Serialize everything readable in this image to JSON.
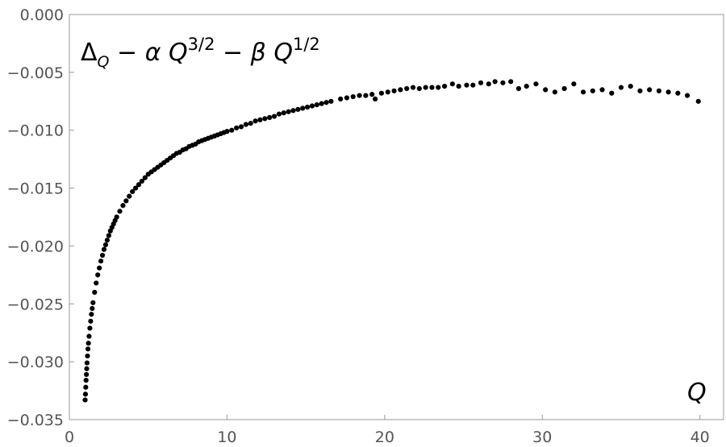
{
  "chart_data": {
    "type": "scatter",
    "title": "",
    "annotation": {
      "delta": "Δ",
      "delta_sub": "Q",
      "minus1": " − ",
      "alpha": "α",
      "q1": " Q",
      "exp1": "3/2",
      "minus2": " − ",
      "beta": "β",
      "q2": " Q",
      "exp2": "1/2"
    },
    "xlabel": "Q",
    "ylabel": "",
    "xlim": [
      0,
      41.5
    ],
    "ylim": [
      -0.035,
      0.0
    ],
    "xticks": [
      0,
      10,
      20,
      30,
      40
    ],
    "xtick_labels": [
      "0",
      "10",
      "20",
      "30",
      "40"
    ],
    "yticks": [
      0.0,
      -0.005,
      -0.01,
      -0.015,
      -0.02,
      -0.025,
      -0.03,
      -0.035
    ],
    "ytick_labels": [
      "0.000",
      "−0.005",
      "−0.010",
      "−0.015",
      "−0.020",
      "−0.025",
      "−0.030",
      "−0.035"
    ],
    "grid": false,
    "frame": true,
    "marker_color": "#000000",
    "axis_color": "#999999",
    "series": [
      {
        "x": [
          1.0,
          1.02,
          1.04,
          1.06,
          1.08,
          1.1,
          1.12,
          1.15,
          1.18,
          1.21,
          1.25,
          1.3,
          1.35,
          1.4,
          1.45,
          1.5,
          1.6,
          1.7,
          1.8,
          1.9,
          2.0,
          2.1,
          2.2,
          2.3,
          2.4,
          2.5,
          2.6,
          2.7,
          2.8,
          2.9,
          3.0,
          3.2,
          3.4,
          3.6,
          3.8,
          4.0,
          4.2,
          4.4,
          4.6,
          4.8,
          5.0,
          5.2,
          5.4,
          5.6,
          5.8,
          6.0,
          6.2,
          6.4,
          6.6,
          6.8,
          7.0,
          7.2,
          7.4,
          7.6,
          7.8,
          8.0,
          8.2,
          8.4,
          8.6,
          8.8,
          9.0,
          9.2,
          9.4,
          9.6,
          9.8,
          10.0,
          10.3,
          10.6,
          10.9,
          11.2,
          11.5,
          11.8,
          12.1,
          12.4,
          12.7,
          13.0,
          13.3,
          13.6,
          13.9,
          14.2,
          14.5,
          14.8,
          15.1,
          15.4,
          15.7,
          16.0,
          16.3,
          16.6,
          17.2,
          17.6,
          18.0,
          18.4,
          18.8,
          19.2,
          19.4,
          19.8,
          20.2,
          20.6,
          21.0,
          21.4,
          21.8,
          22.2,
          22.6,
          23.0,
          23.4,
          23.8,
          24.3,
          24.7,
          25.2,
          25.6,
          26.1,
          26.6,
          27.0,
          27.5,
          28.0,
          28.5,
          29.0,
          29.6,
          30.2,
          30.8,
          31.4,
          32.0,
          32.6,
          33.2,
          33.8,
          34.4,
          35.0,
          35.6,
          36.2,
          36.8,
          37.4,
          38.0,
          38.6,
          39.2,
          39.9
        ],
        "y": [
          -0.0333,
          -0.0328,
          -0.0322,
          -0.0316,
          -0.0311,
          -0.0306,
          -0.0301,
          -0.0295,
          -0.0289,
          -0.0284,
          -0.0278,
          -0.0271,
          -0.0265,
          -0.0259,
          -0.0254,
          -0.0249,
          -0.024,
          -0.0232,
          -0.0225,
          -0.0219,
          -0.0213,
          -0.0208,
          -0.0203,
          -0.0199,
          -0.0195,
          -0.0191,
          -0.0187,
          -0.0184,
          -0.0181,
          -0.0178,
          -0.0175,
          -0.017,
          -0.0165,
          -0.0161,
          -0.0157,
          -0.0153,
          -0.015,
          -0.0147,
          -0.0144,
          -0.0141,
          -0.0138,
          -0.0136,
          -0.0134,
          -0.0132,
          -0.013,
          -0.0128,
          -0.0126,
          -0.0124,
          -0.0122,
          -0.012,
          -0.0119,
          -0.0117,
          -0.0116,
          -0.0114,
          -0.0113,
          -0.0112,
          -0.011,
          -0.0109,
          -0.0108,
          -0.0107,
          -0.0106,
          -0.0105,
          -0.0104,
          -0.0103,
          -0.0102,
          -0.0101,
          -0.01,
          -0.0098,
          -0.0097,
          -0.0095,
          -0.0094,
          -0.0092,
          -0.0091,
          -0.009,
          -0.0089,
          -0.0088,
          -0.0086,
          -0.0085,
          -0.0084,
          -0.0083,
          -0.0082,
          -0.0081,
          -0.008,
          -0.0079,
          -0.0078,
          -0.0077,
          -0.0076,
          -0.0075,
          -0.0073,
          -0.0072,
          -0.0071,
          -0.007,
          -0.007,
          -0.0069,
          -0.0073,
          -0.0068,
          -0.0067,
          -0.0066,
          -0.0065,
          -0.0064,
          -0.0063,
          -0.0064,
          -0.0063,
          -0.0063,
          -0.0063,
          -0.0062,
          -0.006,
          -0.0062,
          -0.0061,
          -0.0061,
          -0.0059,
          -0.006,
          -0.0058,
          -0.0059,
          -0.0058,
          -0.0064,
          -0.0062,
          -0.006,
          -0.0065,
          -0.0067,
          -0.0064,
          -0.006,
          -0.0067,
          -0.0066,
          -0.0065,
          -0.0068,
          -0.0063,
          -0.0062,
          -0.0066,
          -0.0065,
          -0.0066,
          -0.0067,
          -0.0068,
          -0.007,
          -0.0075
        ]
      }
    ]
  }
}
